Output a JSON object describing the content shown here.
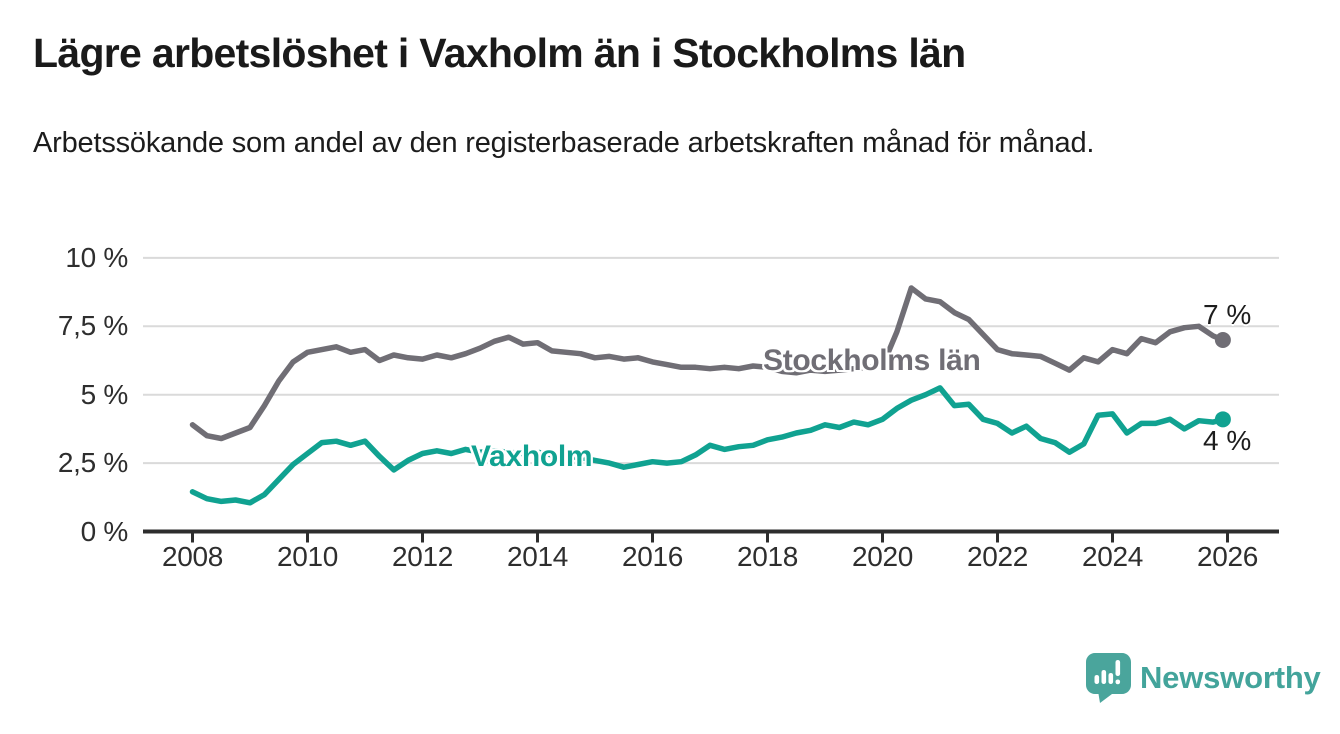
{
  "header": {
    "title": "Lägre arbetslöshet i Vaxholm än i Stockholms län",
    "subtitle": "Arbetssökande som andel av den registerbaserade arbetskraften månad för månad."
  },
  "chart_data": {
    "type": "line",
    "title": "Lägre arbetslöshet i Vaxholm än i Stockholms län",
    "subtitle": "Arbetssökande som andel av den registerbaserade arbetskraften månad för månad.",
    "xlabel": "",
    "ylabel": "",
    "x_unit": "decimal year (monthly data)",
    "xlim": [
      2008,
      2026.8
    ],
    "ylim": [
      0,
      10
    ],
    "grid": "horizontal",
    "legend_position": "inline-on-line",
    "yticks": [
      {
        "v": 0,
        "label": "0 %"
      },
      {
        "v": 2.5,
        "label": "2,5 %"
      },
      {
        "v": 5,
        "label": "5 %"
      },
      {
        "v": 7.5,
        "label": "7,5 %"
      },
      {
        "v": 10,
        "label": "10 %"
      }
    ],
    "xticks": [
      {
        "v": 2008,
        "label": "2008"
      },
      {
        "v": 2010,
        "label": "2010"
      },
      {
        "v": 2012,
        "label": "2012"
      },
      {
        "v": 2014,
        "label": "2014"
      },
      {
        "v": 2016,
        "label": "2016"
      },
      {
        "v": 2018,
        "label": "2018"
      },
      {
        "v": 2020,
        "label": "2020"
      },
      {
        "v": 2022,
        "label": "2022"
      },
      {
        "v": 2024,
        "label": "2024"
      },
      {
        "v": 2026,
        "label": "2026"
      }
    ],
    "x": [
      2008,
      2008.25,
      2008.5,
      2008.75,
      2009,
      2009.25,
      2009.5,
      2009.75,
      2010,
      2010.25,
      2010.5,
      2010.75,
      2011,
      2011.25,
      2011.5,
      2011.75,
      2012,
      2012.25,
      2012.5,
      2012.75,
      2013,
      2013.25,
      2013.5,
      2013.75,
      2014,
      2014.25,
      2014.5,
      2014.75,
      2015,
      2015.25,
      2015.5,
      2015.75,
      2016,
      2016.25,
      2016.5,
      2016.75,
      2017,
      2017.25,
      2017.5,
      2017.75,
      2018,
      2018.25,
      2018.5,
      2018.75,
      2019,
      2019.25,
      2019.5,
      2019.75,
      2020,
      2020.25,
      2020.5,
      2020.75,
      2021,
      2021.25,
      2021.5,
      2021.75,
      2022,
      2022.25,
      2022.5,
      2022.75,
      2023,
      2023.25,
      2023.5,
      2023.75,
      2024,
      2024.25,
      2024.5,
      2024.75,
      2025,
      2025.25,
      2025.5,
      2025.75,
      2025.92
    ],
    "series": [
      {
        "name": "Stockholms län",
        "color": "#706E75",
        "end_label": "7 %",
        "end_value": 7.0,
        "values": [
          3.9,
          3.5,
          3.4,
          3.6,
          3.8,
          4.6,
          5.5,
          6.2,
          6.55,
          6.65,
          6.75,
          6.55,
          6.65,
          6.25,
          6.45,
          6.35,
          6.3,
          6.45,
          6.35,
          6.5,
          6.7,
          6.95,
          7.1,
          6.85,
          6.9,
          6.6,
          6.55,
          6.5,
          6.35,
          6.4,
          6.3,
          6.35,
          6.2,
          6.1,
          6.0,
          6.0,
          5.95,
          6.0,
          5.95,
          6.05,
          6.0,
          5.85,
          5.8,
          5.9,
          5.85,
          5.9,
          5.95,
          6.0,
          6.05,
          7.3,
          8.9,
          8.5,
          8.4,
          8.0,
          7.75,
          7.2,
          6.65,
          6.5,
          6.45,
          6.4,
          6.15,
          5.9,
          6.35,
          6.2,
          6.65,
          6.5,
          7.05,
          6.9,
          7.3,
          7.45,
          7.5,
          7.15,
          7.0
        ]
      },
      {
        "name": "Vaxholm",
        "color": "#10a291",
        "end_label": "4 %",
        "end_value": 4.0,
        "values": [
          1.45,
          1.2,
          1.1,
          1.15,
          1.05,
          1.35,
          1.9,
          2.45,
          2.85,
          3.25,
          3.3,
          3.15,
          3.3,
          2.75,
          2.25,
          2.6,
          2.85,
          2.95,
          2.85,
          3.0,
          2.9,
          2.95,
          2.9,
          2.85,
          2.9,
          2.8,
          2.75,
          2.7,
          2.6,
          2.5,
          2.35,
          2.45,
          2.55,
          2.5,
          2.55,
          2.8,
          3.15,
          3.0,
          3.1,
          3.15,
          3.35,
          3.45,
          3.6,
          3.7,
          3.9,
          3.8,
          4.0,
          3.9,
          4.1,
          4.5,
          4.8,
          5.0,
          5.25,
          4.6,
          4.65,
          4.1,
          3.95,
          3.6,
          3.85,
          3.4,
          3.25,
          2.9,
          3.2,
          4.25,
          4.3,
          3.6,
          3.95,
          3.95,
          4.1,
          3.75,
          4.05,
          4.0,
          4.1
        ]
      }
    ],
    "colors": {
      "grid": "#dadada",
      "axis": "#2d2d2d",
      "tick_text": "#2e2e2e",
      "title_text": "#1a1a1a",
      "end_label_text": "#1d1d1d"
    }
  },
  "footer": {
    "brand": "Newsworthy",
    "brand_color": "#43a49b"
  }
}
